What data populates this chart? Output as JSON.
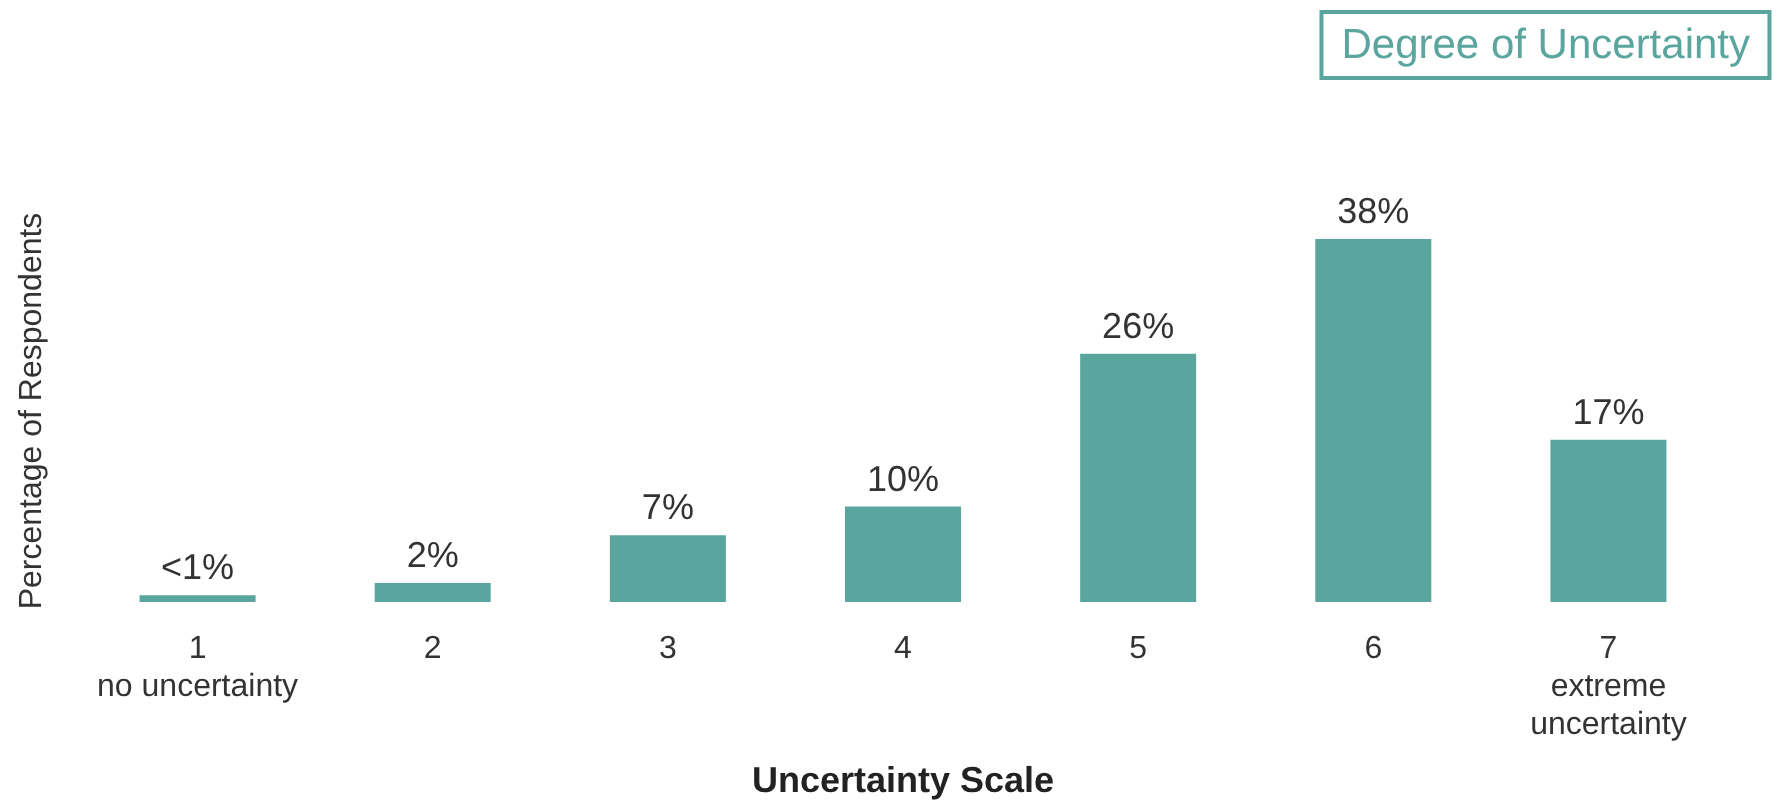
{
  "chart_data": {
    "type": "bar",
    "title": "Degree of Uncertainty",
    "xlabel": "Uncertainty Scale",
    "ylabel": "Percentage of Respondents",
    "categories": [
      "1\nno uncertainty",
      "2",
      "3",
      "4",
      "5",
      "6",
      "7\nextreme\nuncertainty"
    ],
    "values": [
      0.7,
      2,
      7,
      10,
      26,
      38,
      17
    ],
    "value_labels": [
      "<1%",
      "2%",
      "7%",
      "10%",
      "26%",
      "38%",
      "17%"
    ],
    "color": "#5aa69e"
  }
}
